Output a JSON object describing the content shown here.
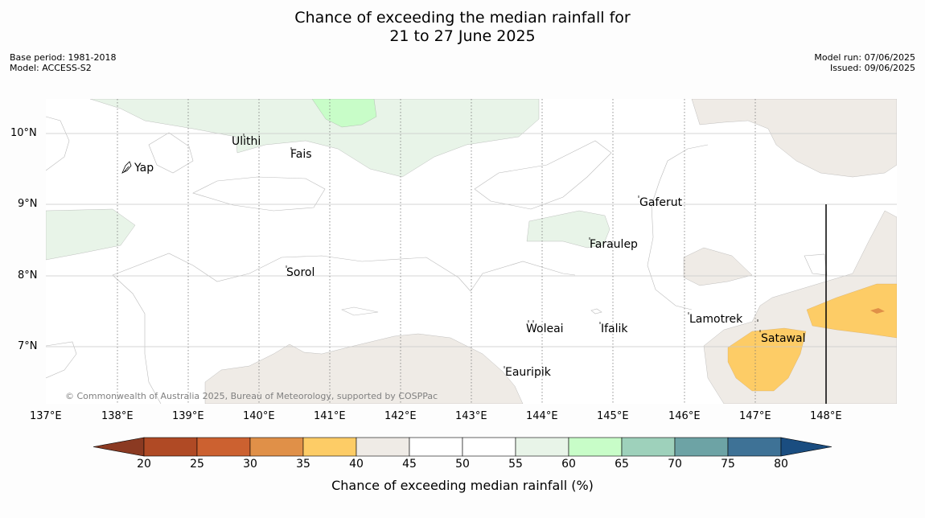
{
  "title": {
    "line1": "Chance of exceeding the median rainfall for",
    "line2": "21 to 27 June 2025"
  },
  "meta_left": {
    "base_period": "Base period: 1981-2018",
    "model": "Model: ACCESS-S2"
  },
  "meta_right": {
    "model_run": "Model run: 07/06/2025",
    "issued": "Issued: 09/06/2025"
  },
  "map": {
    "lat_labels": [
      "10°N",
      "9°N",
      "8°N",
      "7°N"
    ],
    "lon_labels": [
      "137°E",
      "138°E",
      "139°E",
      "140°E",
      "141°E",
      "142°E",
      "143°E",
      "144°E",
      "145°E",
      "146°E",
      "147°E",
      "148°E"
    ],
    "places": [
      "Ulithi",
      "Fais",
      "Yap",
      "Gaferut",
      "Faraulep",
      "Sorol",
      "Lamotrek",
      "Woleai",
      "Ifalik",
      "Satawal",
      "Eauripik"
    ],
    "copyright": "© Commonwealth of Australia 2025, Bureau of Meteorology, supported by COSPPac"
  },
  "colorbar": {
    "title": "Chance of exceeding median rainfall (%)",
    "ticks": [
      "20",
      "25",
      "30",
      "35",
      "40",
      "45",
      "50",
      "55",
      "60",
      "65",
      "70",
      "75",
      "80"
    ],
    "colors": [
      "#8b3a22",
      "#b04a25",
      "#cc6130",
      "#e09048",
      "#fdcc66",
      "#efebe6",
      "#ffffff",
      "#ffffff",
      "#e8f4e8",
      "#c8fdc8",
      "#9ed1bb",
      "#6da3a5",
      "#3e7296",
      "#1a4d80"
    ]
  }
}
